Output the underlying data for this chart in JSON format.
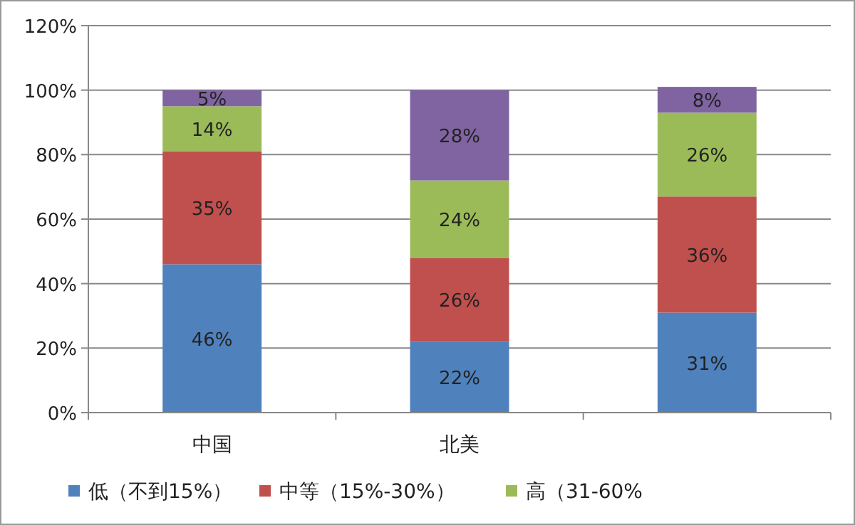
{
  "chart_data": {
    "type": "bar",
    "stacked": true,
    "categories": [
      "中国",
      "北美",
      null
    ],
    "series": [
      {
        "name": "低（不到15%）",
        "color": "#4f81bd",
        "values": [
          46,
          22,
          31
        ],
        "value_labels": [
          "46%",
          "22%",
          "31%"
        ]
      },
      {
        "name": "中等（15%-30%）",
        "color": "#c0504d",
        "values": [
          35,
          26,
          36
        ],
        "value_labels": [
          "35%",
          "26%",
          "36%"
        ]
      },
      {
        "name": "高（31-60%",
        "color": "#9bbb59",
        "values": [
          14,
          24,
          26
        ],
        "value_labels": [
          "14%",
          "24%",
          "26%"
        ]
      },
      {
        "color": "#8064a2",
        "values": [
          5,
          28,
          8
        ],
        "value_labels": [
          "5%",
          "28%",
          "8%"
        ]
      }
    ],
    "ylim": [
      0,
      120
    ],
    "yticks": [
      {
        "value": 0,
        "label": "0%"
      },
      {
        "value": 20,
        "label": "20%"
      },
      {
        "value": 40,
        "label": "40%"
      },
      {
        "value": 60,
        "label": "60%"
      },
      {
        "value": 80,
        "label": "80%"
      },
      {
        "value": 100,
        "label": "100%"
      },
      {
        "value": 120,
        "label": "120%"
      }
    ],
    "grid": "y",
    "legend": "bottom"
  }
}
